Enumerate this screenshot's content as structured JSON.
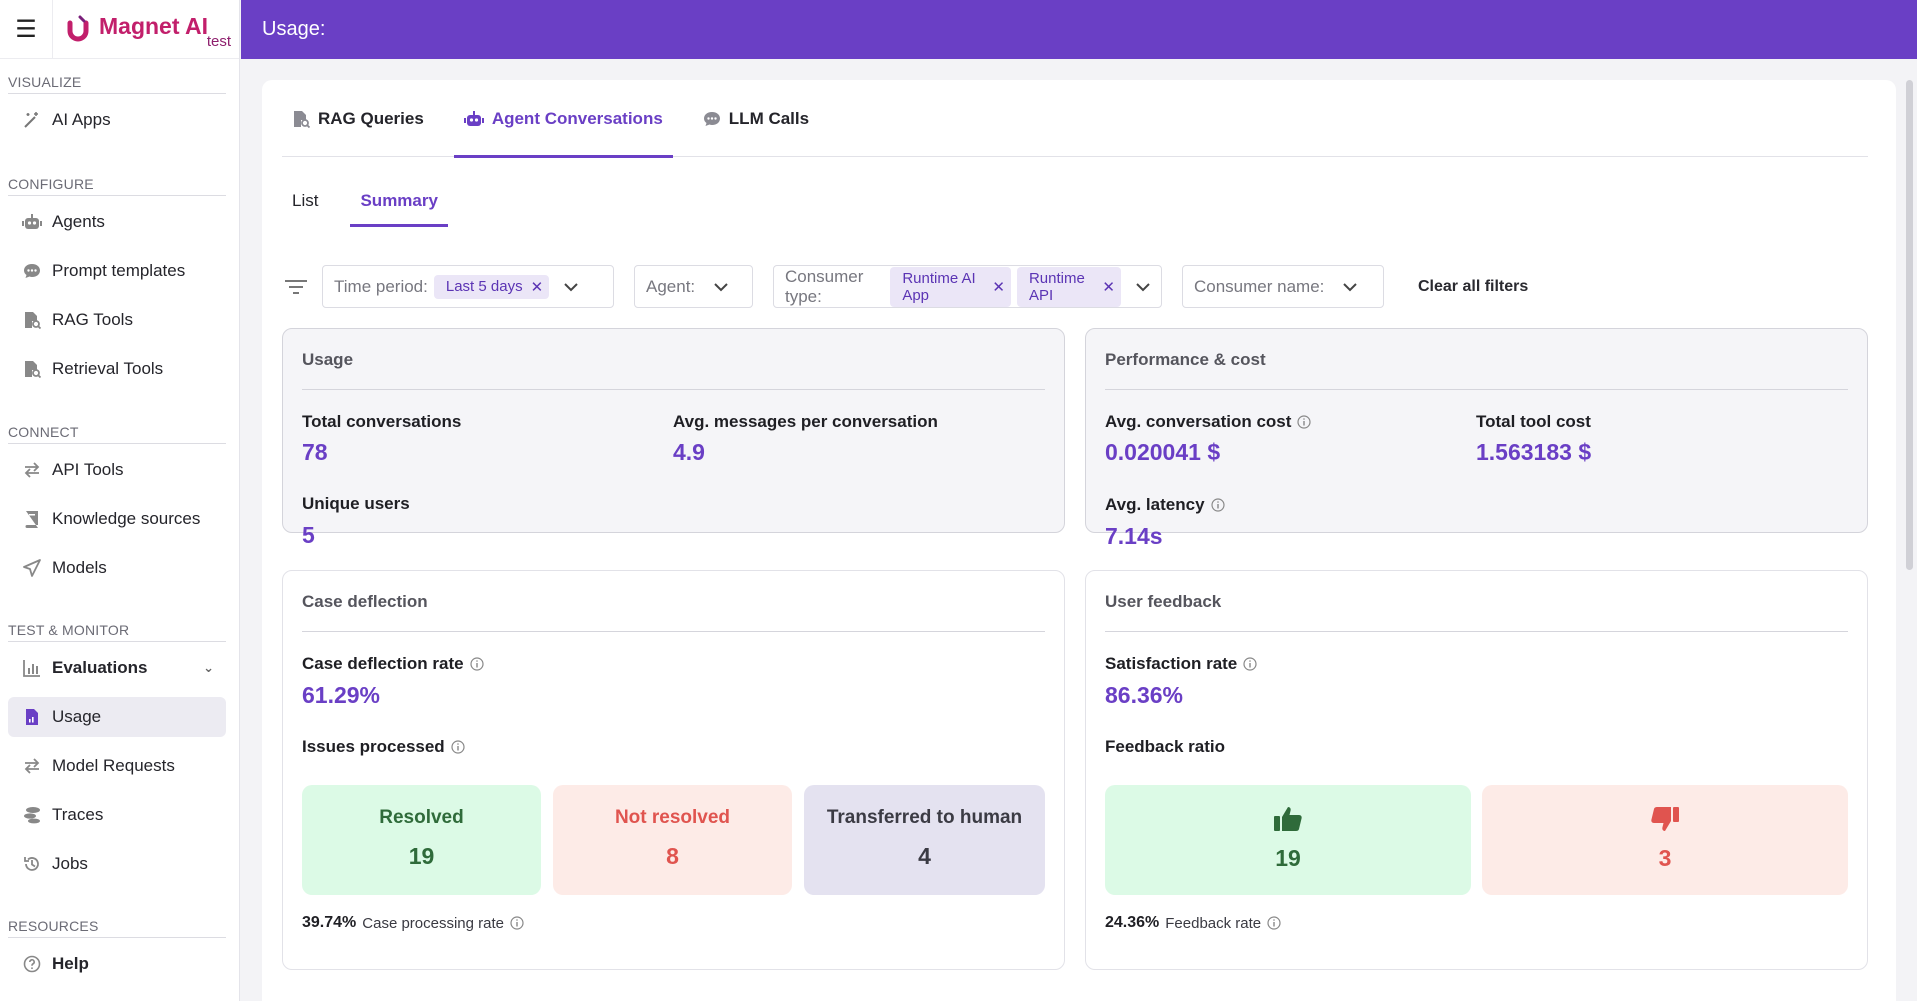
{
  "app": {
    "brand_name": "Magnet AI",
    "brand_sub": "test",
    "page_title": "Usage:"
  },
  "sidebar": {
    "sections": [
      {
        "title": "VISUALIZE",
        "items": [
          {
            "label": "AI Apps",
            "icon": "magic-wand-icon"
          }
        ]
      },
      {
        "title": "CONFIGURE",
        "items": [
          {
            "label": "Agents",
            "icon": "robot-icon"
          },
          {
            "label": "Prompt templates",
            "icon": "chat-bubble-icon"
          },
          {
            "label": "RAG Tools",
            "icon": "document-search-icon"
          },
          {
            "label": "Retrieval Tools",
            "icon": "document-search-icon"
          }
        ]
      },
      {
        "title": "CONNECT",
        "items": [
          {
            "label": "API Tools",
            "icon": "arrows-exchange-icon"
          },
          {
            "label": "Knowledge sources",
            "icon": "book-icon"
          },
          {
            "label": "Models",
            "icon": "send-icon"
          }
        ]
      },
      {
        "title": "TEST & MONITOR",
        "items": [
          {
            "label": "Evaluations",
            "icon": "bar-chart-icon"
          },
          {
            "label": "Usage",
            "icon": "file-chart-icon"
          },
          {
            "label": "Model Requests",
            "icon": "arrows-exchange-icon"
          },
          {
            "label": "Traces",
            "icon": "traces-icon"
          },
          {
            "label": "Jobs",
            "icon": "history-icon"
          }
        ]
      },
      {
        "title": "RESOURCES",
        "items": [
          {
            "label": "Help",
            "icon": "question-circle-icon"
          }
        ]
      }
    ]
  },
  "tabs": {
    "main": [
      "RAG Queries",
      "Agent Conversations",
      "LLM Calls"
    ],
    "active_main": "Agent Conversations",
    "sub": [
      "List",
      "Summary"
    ],
    "active_sub": "Summary"
  },
  "filters": {
    "time_period_label": "Time period:",
    "time_period_chip": "Last 5 days",
    "agent_label": "Agent:",
    "consumer_type_label": "Consumer type:",
    "consumer_type_chips": [
      "Runtime AI App",
      "Runtime API"
    ],
    "consumer_name_label": "Consumer name:",
    "clear_all": "Clear all filters"
  },
  "usage": {
    "title": "Usage",
    "total_conversations_label": "Total conversations",
    "total_conversations": "78",
    "avg_messages_label": "Avg. messages per conversation",
    "avg_messages": "4.9",
    "unique_users_label": "Unique users",
    "unique_users": "5"
  },
  "performance": {
    "title": "Performance & cost",
    "avg_cost_label": "Avg. conversation cost",
    "avg_cost": "0.020041 $",
    "total_tool_cost_label": "Total tool cost",
    "total_tool_cost": "1.563183 $",
    "avg_latency_label": "Avg. latency",
    "avg_latency": "7.14s"
  },
  "case_deflection": {
    "title": "Case deflection",
    "rate_label": "Case deflection rate",
    "rate": "61.29%",
    "issues_label": "Issues processed",
    "resolved_label": "Resolved",
    "resolved": "19",
    "not_resolved_label": "Not resolved",
    "not_resolved": "8",
    "transferred_label": "Transferred to human",
    "transferred": "4",
    "processing_rate": "39.74%",
    "processing_rate_label": "Case processing rate"
  },
  "user_feedback": {
    "title": "User feedback",
    "satisfaction_label": "Satisfaction rate",
    "satisfaction": "86.36%",
    "ratio_label": "Feedback ratio",
    "thumbs_up": "19",
    "thumbs_down": "3",
    "feedback_rate": "24.36%",
    "feedback_rate_label": "Feedback rate"
  },
  "colors": {
    "brand": "#6a3fc5",
    "green": "#2f6b3a",
    "red": "#e0544f"
  }
}
